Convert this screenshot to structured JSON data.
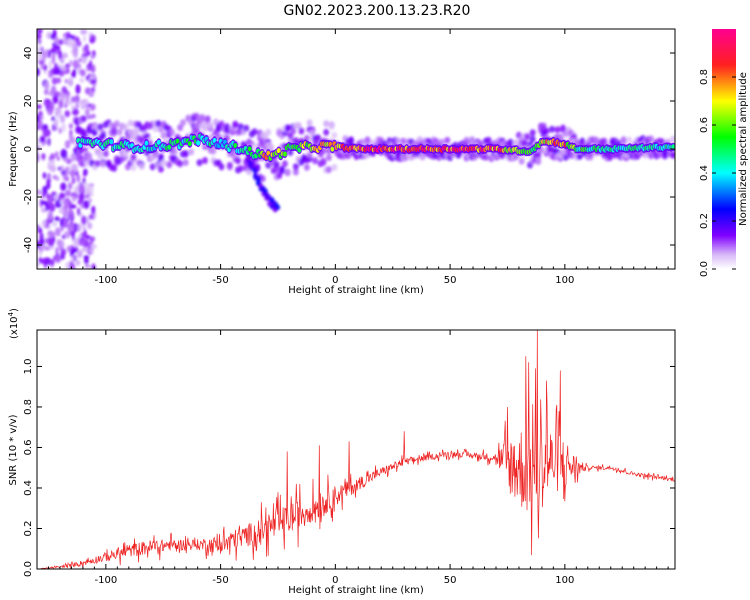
{
  "title": "GN02.2023.200.13.23.R20",
  "chart_data": [
    {
      "type": "heatmap",
      "xlabel": "Height of straight line (km)",
      "ylabel": "Frequency (Hz)",
      "xlim": [
        -130,
        148
      ],
      "ylim": [
        -50,
        50
      ],
      "x_ticks": [
        -100,
        -50,
        0,
        50,
        100
      ],
      "y_ticks": [
        -40,
        -20,
        0,
        20,
        40
      ],
      "colorbar": {
        "label": "Normalized spectral amplitude",
        "range": [
          0,
          1
        ],
        "ticks": [
          "0.0",
          "0.2",
          "0.4",
          "0.6",
          "0.8"
        ],
        "colormap": [
          "#ffffff",
          "#c8a0f0",
          "#8000ff",
          "#0000ff",
          "#00ffff",
          "#00ff00",
          "#ffff00",
          "#ff0000",
          "#ff00a0"
        ]
      },
      "ridge": {
        "x": [
          -110,
          -100,
          -90,
          -80,
          -70,
          -60,
          -50,
          -40,
          -35,
          -30,
          -25,
          -20,
          -10,
          0,
          10,
          30,
          50,
          70,
          85,
          90,
          95,
          100,
          105,
          120,
          148
        ],
        "y": [
          3,
          2,
          1,
          1,
          2,
          4,
          2,
          0,
          -2,
          -3,
          -2,
          0,
          1,
          1,
          0,
          0,
          0,
          0,
          -1,
          3,
          3,
          2,
          0,
          0,
          1
        ],
        "amplitude": [
          0.45,
          0.5,
          0.45,
          0.45,
          0.5,
          0.5,
          0.45,
          0.5,
          0.6,
          0.75,
          0.7,
          0.6,
          0.7,
          0.85,
          0.95,
          0.95,
          0.95,
          0.9,
          0.55,
          0.7,
          0.8,
          0.8,
          0.55,
          0.5,
          0.45
        ]
      },
      "branch": {
        "x": [
          -40,
          -35,
          -30,
          -25
        ],
        "y": [
          0,
          -10,
          -20,
          -25
        ]
      }
    },
    {
      "type": "line",
      "xlabel": "Height of straight line (km)",
      "ylabel": "SNR (10 * v/v)",
      "y_scale_label": "(x10",
      "y_scale_exponent": "4",
      "y_scale_suffix": ")",
      "xlim": [
        -130,
        148
      ],
      "ylim": [
        0,
        1.18
      ],
      "x_ticks": [
        -100,
        -50,
        0,
        50,
        100
      ],
      "y_ticks": [
        "0.0",
        "0.2",
        "0.4",
        "0.6",
        "0.8",
        "1.0"
      ],
      "color": "#ee2222",
      "series": [
        {
          "x": [
            -130,
            -120,
            -110,
            -100,
            -90,
            -80,
            -70,
            -60,
            -50,
            -40,
            -30,
            -25,
            -20,
            -10,
            0,
            10,
            20,
            30,
            40,
            50,
            60,
            70,
            75,
            80,
            85,
            90,
            95,
            100,
            105,
            110,
            120,
            130,
            148
          ],
          "values": [
            0.0,
            0.01,
            0.03,
            0.06,
            0.09,
            0.11,
            0.12,
            0.12,
            0.12,
            0.16,
            0.2,
            0.22,
            0.25,
            0.3,
            0.36,
            0.42,
            0.48,
            0.53,
            0.55,
            0.57,
            0.56,
            0.55,
            0.52,
            0.5,
            0.5,
            0.52,
            0.53,
            0.52,
            0.5,
            0.5,
            0.5,
            0.47,
            0.44
          ],
          "noise_amplitude": [
            0.0,
            0.01,
            0.03,
            0.05,
            0.07,
            0.08,
            0.06,
            0.06,
            0.1,
            0.12,
            0.15,
            0.16,
            0.17,
            0.15,
            0.12,
            0.07,
            0.05,
            0.04,
            0.03,
            0.03,
            0.03,
            0.05,
            0.3,
            0.45,
            0.55,
            0.5,
            0.35,
            0.3,
            0.1,
            0.02,
            0.02,
            0.02,
            0.02
          ],
          "peaks": [
            {
              "x": -21,
              "y": 0.58
            },
            {
              "x": -7,
              "y": 0.61
            },
            {
              "x": 6,
              "y": 0.63
            },
            {
              "x": 30,
              "y": 0.68
            },
            {
              "x": 75,
              "y": 0.8
            },
            {
              "x": 83,
              "y": 1.05
            },
            {
              "x": 88,
              "y": 1.18
            },
            {
              "x": 92,
              "y": 0.93
            },
            {
              "x": 98,
              "y": 0.98
            }
          ]
        }
      ]
    }
  ]
}
